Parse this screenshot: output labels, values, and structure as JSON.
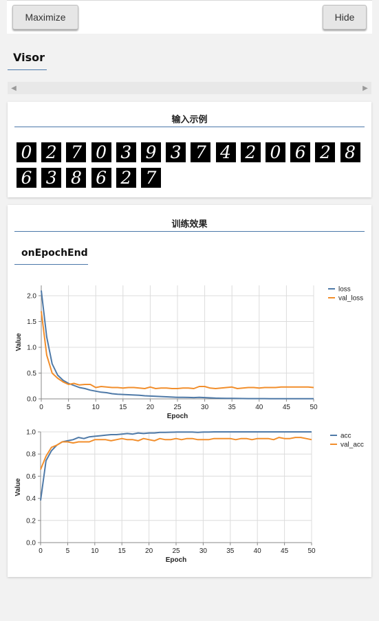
{
  "toolbar": {
    "maximize_label": "Maximize",
    "hide_label": "Hide"
  },
  "visor": {
    "title": "Visor"
  },
  "scrollbar": {
    "left_arrow": "◀",
    "right_arrow": "▶"
  },
  "samples_card": {
    "title": "输入示例",
    "digits": [
      "0",
      "2",
      "7",
      "0",
      "3",
      "9",
      "3",
      "7",
      "4",
      "2",
      "0",
      "6",
      "2",
      "8",
      "6",
      "3",
      "8",
      "6",
      "2",
      "7"
    ]
  },
  "training_card": {
    "title": "训练效果",
    "subtitle": "onEpochEnd"
  },
  "colors": {
    "series_blue": "#4e79a7",
    "series_orange": "#f28e2b",
    "accent_line": "#4a77a9"
  },
  "chart_data": [
    {
      "type": "line",
      "xlabel": "Epoch",
      "ylabel": "Value",
      "xlim": [
        0,
        50
      ],
      "ylim": [
        0,
        2.2
      ],
      "xticks": [
        "0",
        "5",
        "10",
        "15",
        "20",
        "25",
        "30",
        "35",
        "40",
        "45",
        "50"
      ],
      "yticks": [
        "0.0",
        "0.5",
        "1.0",
        "1.5",
        "2.0"
      ],
      "grid": true,
      "legend": "right",
      "series": [
        {
          "name": "loss",
          "color": "#4e79a7",
          "x": [
            0,
            1,
            2,
            3,
            4,
            5,
            6,
            7,
            8,
            9,
            10,
            11,
            12,
            13,
            14,
            15,
            16,
            17,
            18,
            19,
            20,
            21,
            22,
            23,
            24,
            25,
            26,
            27,
            28,
            29,
            30,
            31,
            32,
            33,
            34,
            35,
            36,
            37,
            38,
            39,
            40,
            41,
            42,
            43,
            44,
            45,
            46,
            47,
            48,
            49,
            50
          ],
          "values": [
            2.1,
            1.2,
            0.68,
            0.46,
            0.36,
            0.3,
            0.26,
            0.22,
            0.2,
            0.17,
            0.15,
            0.13,
            0.12,
            0.1,
            0.09,
            0.085,
            0.08,
            0.075,
            0.07,
            0.06,
            0.055,
            0.05,
            0.045,
            0.04,
            0.035,
            0.03,
            0.03,
            0.028,
            0.025,
            0.03,
            0.025,
            0.02,
            0.015,
            0.012,
            0.01,
            0.01,
            0.008,
            0.007,
            0.006,
            0.005,
            0.005,
            0.005,
            0.004,
            0.004,
            0.004,
            0.003,
            0.003,
            0.003,
            0.003,
            0.003,
            0.002
          ]
        },
        {
          "name": "val_loss",
          "color": "#f28e2b",
          "x": [
            0,
            1,
            2,
            3,
            4,
            5,
            6,
            7,
            8,
            9,
            10,
            11,
            12,
            13,
            14,
            15,
            16,
            17,
            18,
            19,
            20,
            21,
            22,
            23,
            24,
            25,
            26,
            27,
            28,
            29,
            30,
            31,
            32,
            33,
            34,
            35,
            36,
            37,
            38,
            39,
            40,
            41,
            42,
            43,
            44,
            45,
            46,
            47,
            48,
            49,
            50
          ],
          "values": [
            1.7,
            0.85,
            0.5,
            0.4,
            0.33,
            0.28,
            0.3,
            0.27,
            0.28,
            0.28,
            0.22,
            0.24,
            0.23,
            0.22,
            0.22,
            0.21,
            0.22,
            0.22,
            0.21,
            0.2,
            0.23,
            0.2,
            0.21,
            0.21,
            0.2,
            0.2,
            0.21,
            0.21,
            0.2,
            0.24,
            0.24,
            0.21,
            0.2,
            0.21,
            0.22,
            0.23,
            0.2,
            0.21,
            0.22,
            0.22,
            0.21,
            0.22,
            0.22,
            0.22,
            0.23,
            0.23,
            0.23,
            0.23,
            0.23,
            0.23,
            0.22
          ]
        }
      ]
    },
    {
      "type": "line",
      "xlabel": "Epoch",
      "ylabel": "Value",
      "xlim": [
        0,
        50
      ],
      "ylim": [
        0,
        1.0
      ],
      "xticks": [
        "0",
        "5",
        "10",
        "15",
        "20",
        "25",
        "30",
        "35",
        "40",
        "45",
        "50"
      ],
      "yticks": [
        "0.0",
        "0.2",
        "0.4",
        "0.6",
        "0.8",
        "1.0"
      ],
      "grid": true,
      "legend": "right",
      "series": [
        {
          "name": "acc",
          "color": "#4e79a7",
          "x": [
            0,
            1,
            2,
            3,
            4,
            5,
            6,
            7,
            8,
            9,
            10,
            11,
            12,
            13,
            14,
            15,
            16,
            17,
            18,
            19,
            20,
            21,
            22,
            23,
            24,
            25,
            26,
            27,
            28,
            29,
            30,
            31,
            32,
            33,
            34,
            35,
            36,
            37,
            38,
            39,
            40,
            41,
            42,
            43,
            44,
            45,
            46,
            47,
            48,
            49,
            50
          ],
          "values": [
            0.38,
            0.74,
            0.83,
            0.88,
            0.91,
            0.92,
            0.93,
            0.95,
            0.94,
            0.955,
            0.96,
            0.965,
            0.97,
            0.975,
            0.975,
            0.98,
            0.985,
            0.98,
            0.99,
            0.985,
            0.99,
            0.99,
            0.995,
            0.995,
            0.997,
            0.998,
            0.998,
            0.998,
            0.999,
            0.995,
            0.999,
            0.999,
            1.0,
            1.0,
            1.0,
            1.0,
            1.0,
            1.0,
            1.0,
            1.0,
            1.0,
            1.0,
            1.0,
            1.0,
            1.0,
            1.0,
            1.0,
            1.0,
            1.0,
            1.0,
            1.0
          ]
        },
        {
          "name": "val_acc",
          "color": "#f28e2b",
          "x": [
            0,
            1,
            2,
            3,
            4,
            5,
            6,
            7,
            8,
            9,
            10,
            11,
            12,
            13,
            14,
            15,
            16,
            17,
            18,
            19,
            20,
            21,
            22,
            23,
            24,
            25,
            26,
            27,
            28,
            29,
            30,
            31,
            32,
            33,
            34,
            35,
            36,
            37,
            38,
            39,
            40,
            41,
            42,
            43,
            44,
            45,
            46,
            47,
            48,
            49,
            50
          ],
          "values": [
            0.66,
            0.78,
            0.86,
            0.88,
            0.91,
            0.91,
            0.9,
            0.91,
            0.91,
            0.91,
            0.93,
            0.93,
            0.93,
            0.92,
            0.93,
            0.94,
            0.93,
            0.93,
            0.92,
            0.94,
            0.93,
            0.92,
            0.94,
            0.93,
            0.93,
            0.94,
            0.93,
            0.94,
            0.94,
            0.93,
            0.93,
            0.93,
            0.94,
            0.94,
            0.94,
            0.94,
            0.93,
            0.94,
            0.94,
            0.93,
            0.94,
            0.94,
            0.94,
            0.93,
            0.95,
            0.94,
            0.94,
            0.95,
            0.95,
            0.94,
            0.93
          ]
        }
      ]
    }
  ]
}
